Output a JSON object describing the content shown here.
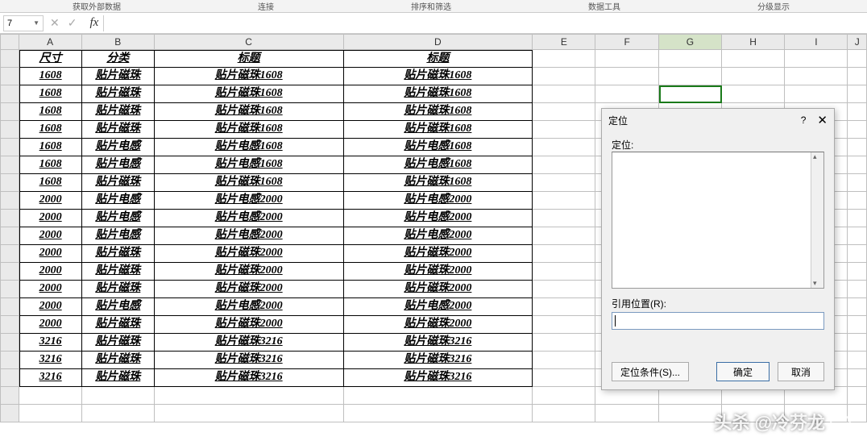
{
  "ribbon_labels": [
    "获取外部数据",
    "连接",
    "排序和筛选",
    "数据工具",
    "分级显示"
  ],
  "namebox": "7",
  "columns": [
    "A",
    "B",
    "C",
    "D",
    "E",
    "F",
    "G",
    "H",
    "I",
    "J"
  ],
  "col_widths_class": [
    "wA",
    "wB",
    "wC",
    "wD",
    "wE",
    "wF",
    "wG",
    "wH",
    "wI",
    "wJ"
  ],
  "selected_col_index": 6,
  "selected_cell": {
    "row": 3,
    "col": 6
  },
  "headers": {
    "A": "尺寸",
    "B": "分类",
    "C": "标题",
    "D": "标题"
  },
  "rows": [
    {
      "A": "1608",
      "B": "贴片磁珠",
      "C": "贴片磁珠1608",
      "D": "贴片磁珠1608"
    },
    {
      "A": "1608",
      "B": "贴片磁珠",
      "C": "贴片磁珠1608",
      "D": "贴片磁珠1608"
    },
    {
      "A": "1608",
      "B": "贴片磁珠",
      "C": "贴片磁珠1608",
      "D": "贴片磁珠1608"
    },
    {
      "A": "1608",
      "B": "贴片磁珠",
      "C": "贴片磁珠1608",
      "D": "贴片磁珠1608"
    },
    {
      "A": "1608",
      "B": "贴片电感",
      "C": "贴片电感1608",
      "D": "贴片电感1608"
    },
    {
      "A": "1608",
      "B": "贴片电感",
      "C": "贴片电感1608",
      "D": "贴片电感1608"
    },
    {
      "A": "1608",
      "B": "贴片磁珠",
      "C": "贴片磁珠1608",
      "D": "贴片磁珠1608"
    },
    {
      "A": "2000",
      "B": "贴片电感",
      "C": "贴片电感2000",
      "D": "贴片电感2000"
    },
    {
      "A": "2000",
      "B": "贴片电感",
      "C": "贴片电感2000",
      "D": "贴片电感2000"
    },
    {
      "A": "2000",
      "B": "贴片电感",
      "C": "贴片电感2000",
      "D": "贴片电感2000"
    },
    {
      "A": "2000",
      "B": "贴片磁珠",
      "C": "贴片磁珠2000",
      "D": "贴片磁珠2000"
    },
    {
      "A": "2000",
      "B": "贴片磁珠",
      "C": "贴片磁珠2000",
      "D": "贴片磁珠2000"
    },
    {
      "A": "2000",
      "B": "贴片磁珠",
      "C": "贴片磁珠2000",
      "D": "贴片磁珠2000"
    },
    {
      "A": "2000",
      "B": "贴片电感",
      "C": "贴片电感2000",
      "D": "贴片电感2000"
    },
    {
      "A": "2000",
      "B": "贴片磁珠",
      "C": "贴片磁珠2000",
      "D": "贴片磁珠2000"
    },
    {
      "A": "3216",
      "B": "贴片磁珠",
      "C": "贴片磁珠3216",
      "D": "贴片磁珠3216"
    },
    {
      "A": "3216",
      "B": "贴片磁珠",
      "C": "贴片磁珠3216",
      "D": "贴片磁珠3216"
    },
    {
      "A": "3216",
      "B": "贴片磁珠",
      "C": "贴片磁珠3216",
      "D": "贴片磁珠3216"
    }
  ],
  "dialog": {
    "title": "定位",
    "label_list": "定位:",
    "label_ref": "引用位置(R):",
    "btn_special": "定位条件(S)...",
    "btn_ok": "确定",
    "btn_cancel": "取消"
  },
  "watermark": "头杀 @冷芬龙"
}
